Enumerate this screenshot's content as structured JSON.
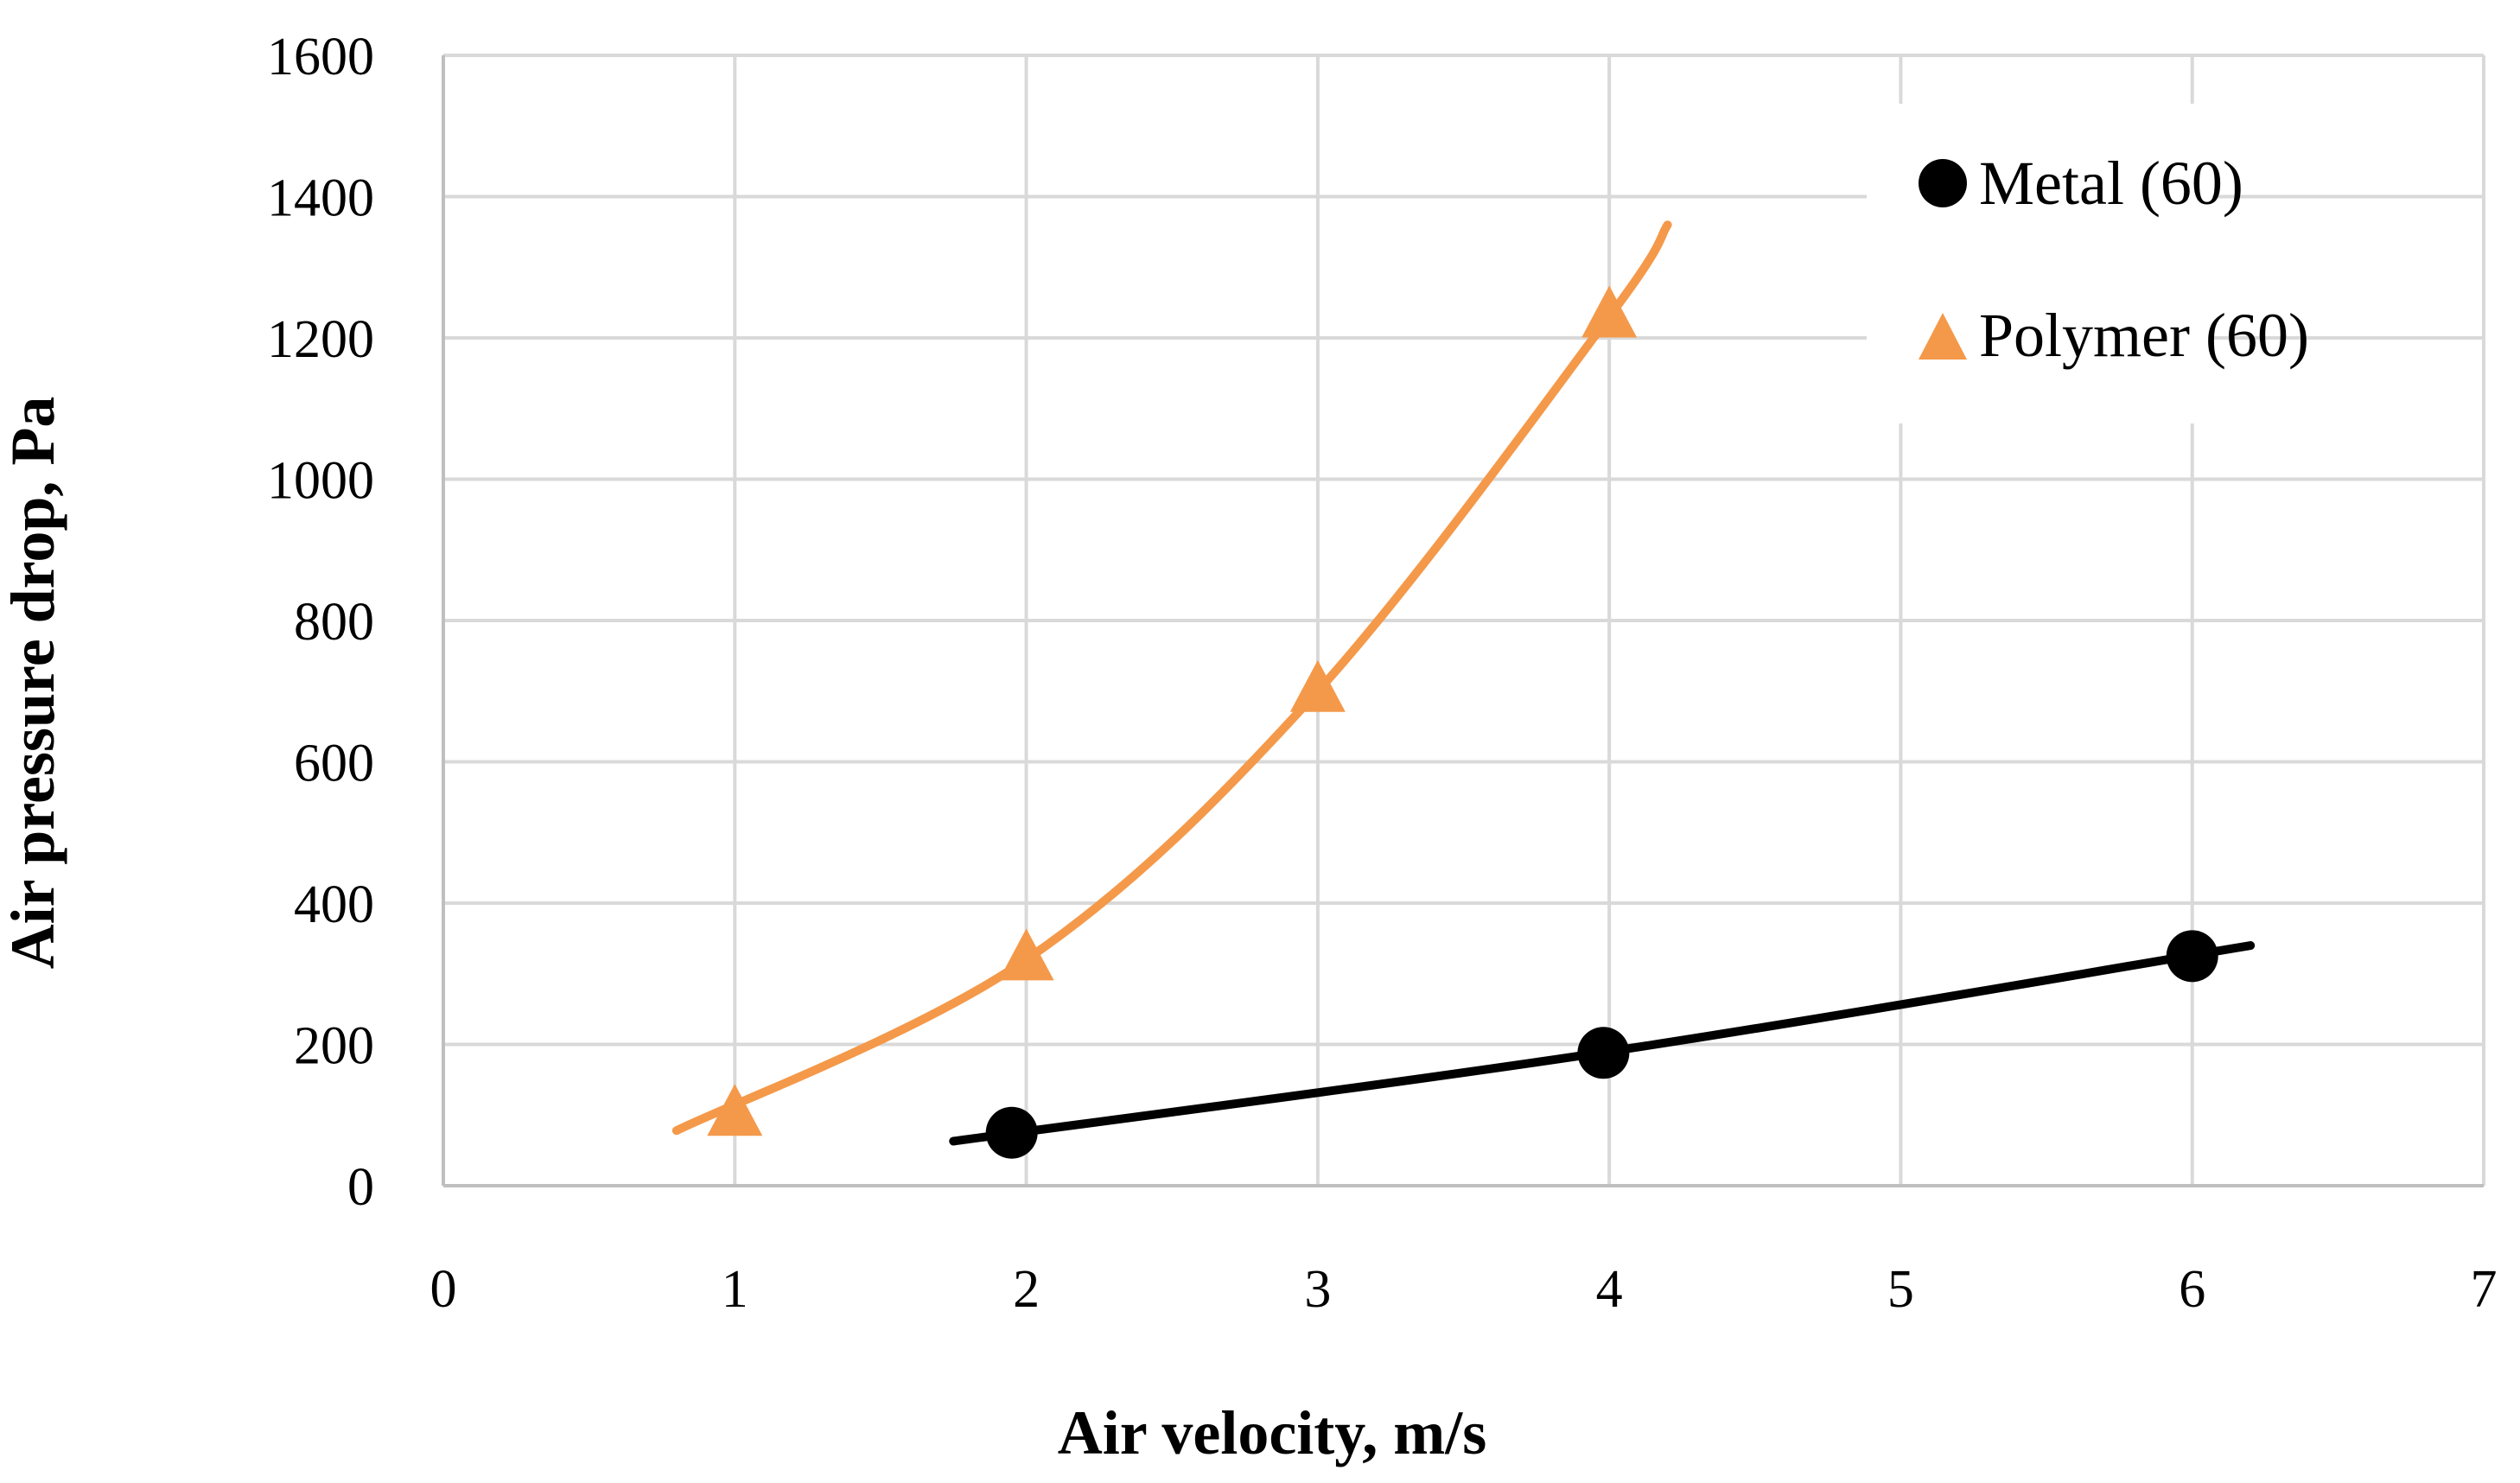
{
  "chart_data": {
    "type": "scatter",
    "title": "",
    "xlabel": "Air velocity, m/s",
    "ylabel": "Air pressure drop, Pa",
    "xlim": [
      0,
      7
    ],
    "ylim": [
      0,
      1600
    ],
    "x_ticks": [
      0,
      1,
      2,
      3,
      4,
      5,
      6,
      7
    ],
    "y_ticks": [
      0,
      200,
      400,
      600,
      800,
      1000,
      1200,
      1400,
      1600
    ],
    "grid": true,
    "legend_position": "top-right",
    "series": [
      {
        "name": "Metal (60)",
        "marker": "circle",
        "color": "#000000",
        "x": [
          1.95,
          3.98,
          6.0
        ],
        "y": [
          75,
          188,
          325
        ],
        "trendline": {
          "x_from": 1.75,
          "x_to": 6.2,
          "points": [
            [
              1.75,
              63
            ],
            [
              4.0,
              190
            ],
            [
              6.2,
              340
            ]
          ]
        }
      },
      {
        "name": "Polymer (60)",
        "marker": "triangle",
        "color": "#F4994A",
        "x": [
          1.0,
          2.0,
          3.0,
          4.0
        ],
        "y": [
          100,
          320,
          700,
          1230
        ],
        "trendline": {
          "x_from": 0.8,
          "x_to": 4.2,
          "points": [
            [
              0.8,
              78
            ],
            [
              2.0,
              320
            ],
            [
              3.0,
              700
            ],
            [
              4.0,
              1230
            ],
            [
              4.2,
              1360
            ]
          ]
        }
      }
    ]
  }
}
